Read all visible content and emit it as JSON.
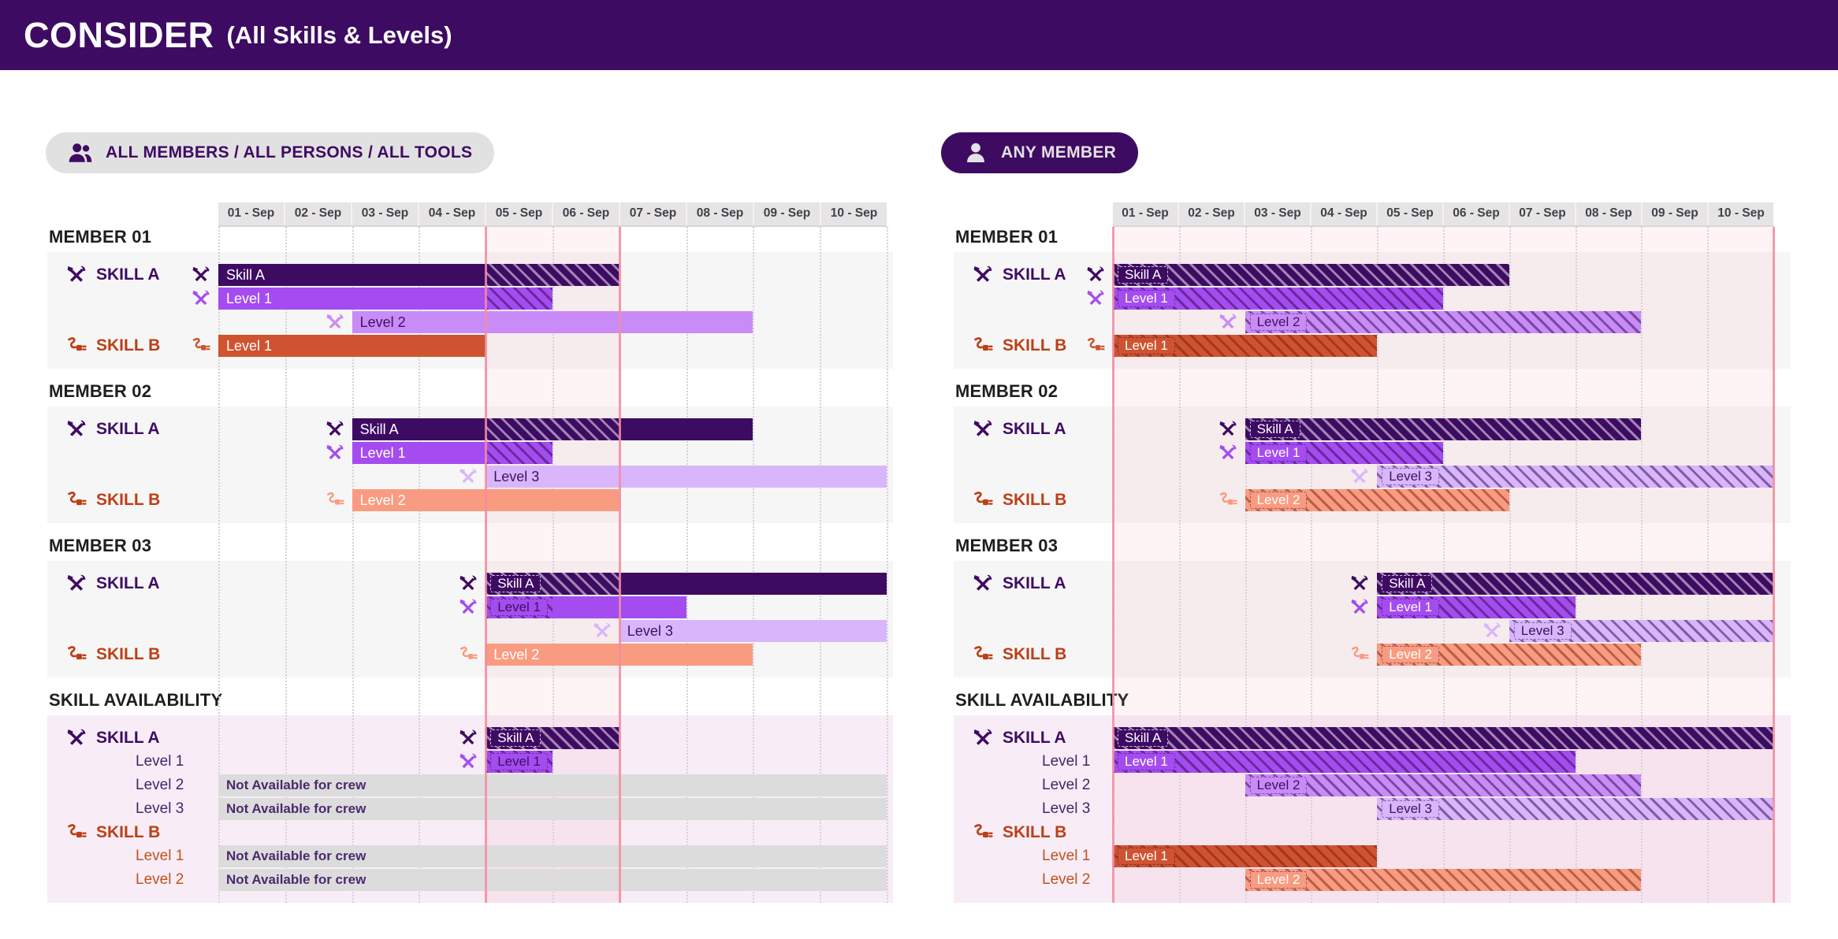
{
  "header": {
    "title": "CONSIDER",
    "subtitle": "(All Skills & Levels)"
  },
  "timeline": {
    "days": [
      "01 - Sep",
      "02 - Sep",
      "03 - Sep",
      "04 - Sep",
      "05 - Sep",
      "06 - Sep",
      "07 - Sep",
      "08 - Sep",
      "09 - Sep",
      "10 - Sep"
    ]
  },
  "colors": {
    "skillA": "#3e0b63",
    "level1": "#a44cf0",
    "level2": "#c98bf7",
    "level3": "#d9b6fb",
    "skillB1": "#cf5330",
    "skillB2": "#f99b80",
    "gray": "#dcdcdc",
    "highlight_line": "#f38ca0",
    "band_bg": "#e6e4e4",
    "member_bg": "#f7f6f6",
    "availability_bg": "#f8edf6",
    "label_purple": "#3e0b63",
    "label_orange": "#bc3f16"
  },
  "panels": [
    {
      "id": "left",
      "pill": {
        "label": "ALL MEMBERS / ALL PERSONS / ALL TOOLS",
        "icon": "people",
        "style": "light"
      },
      "highlight": {
        "from_day": 5,
        "to_day": 7
      },
      "sections": [
        {
          "title": "MEMBER 01",
          "kind": "member",
          "rows": [
            {
              "label": {
                "text": "SKILL A",
                "style": "group-a"
              },
              "bar": {
                "label": "Skill A",
                "start": 1,
                "days": 6,
                "color": "skillA",
                "text": "light",
                "chip": false,
                "icon": "tools",
                "icon_color": "skillA",
                "hatch": {
                  "from": 5,
                  "to": 7,
                  "style": "light"
                }
              }
            },
            {
              "bar": {
                "label": "Level 1",
                "start": 1,
                "days": 5,
                "color": "level1",
                "text": "light",
                "chip": false,
                "icon": "tools",
                "icon_color": "level1",
                "hatch": {
                  "from": 5,
                  "to": 6,
                  "style": "purple"
                }
              }
            },
            {
              "bar": {
                "label": "Level 2",
                "start": 3,
                "days": 6,
                "color": "level2",
                "text": "dark",
                "chip": false,
                "icon": "tools",
                "icon_color": "level2"
              }
            },
            {
              "label": {
                "text": "SKILL B",
                "style": "group-b"
              },
              "bar": {
                "label": "Level 1",
                "start": 1,
                "days": 4,
                "color": "skillB1",
                "text": "light",
                "chip": false,
                "icon": "plug",
                "icon_color": "skillB1"
              }
            }
          ]
        },
        {
          "title": "MEMBER 02",
          "kind": "member",
          "rows": [
            {
              "label": {
                "text": "SKILL A",
                "style": "group-a"
              },
              "bar": {
                "label": "Skill A",
                "start": 3,
                "days": 6,
                "color": "skillA",
                "text": "light",
                "chip": false,
                "icon": "tools",
                "icon_color": "skillA",
                "hatch": {
                  "from": 5,
                  "to": 7,
                  "style": "light"
                }
              }
            },
            {
              "bar": {
                "label": "Level 1",
                "start": 3,
                "days": 3,
                "color": "level1",
                "text": "light",
                "chip": false,
                "icon": "tools",
                "icon_color": "level1",
                "hatch": {
                  "from": 5,
                  "to": 6,
                  "style": "purple"
                }
              }
            },
            {
              "bar": {
                "label": "Level 3",
                "start": 5,
                "days": 6,
                "color": "level3",
                "text": "dark",
                "chip": false,
                "icon": "tools",
                "icon_color": "level3"
              }
            },
            {
              "label": {
                "text": "SKILL B",
                "style": "group-b"
              },
              "bar": {
                "label": "Level 2",
                "start": 3,
                "days": 4,
                "color": "skillB2",
                "text": "light",
                "chip": false,
                "icon": "plug",
                "icon_color": "skillB2"
              }
            }
          ]
        },
        {
          "title": "MEMBER 03",
          "kind": "member",
          "rows": [
            {
              "label": {
                "text": "SKILL A",
                "style": "group-a"
              },
              "bar": {
                "label": "Skill A",
                "start": 5,
                "days": 6,
                "color": "skillA",
                "text": "light",
                "chip": true,
                "icon": "tools",
                "icon_color": "skillA",
                "hatch": {
                  "from": 5,
                  "to": 7,
                  "style": "light"
                }
              }
            },
            {
              "bar": {
                "label": "Level 1",
                "start": 5,
                "days": 3,
                "color": "level1",
                "text": "dark",
                "chip": true,
                "icon": "tools",
                "icon_color": "level1",
                "hatch": {
                  "from": 5,
                  "to": 6,
                  "style": "purple"
                }
              }
            },
            {
              "bar": {
                "label": "Level 3",
                "start": 7,
                "days": 4,
                "color": "level3",
                "text": "dark",
                "chip": false,
                "icon": "tools",
                "icon_color": "level3"
              }
            },
            {
              "label": {
                "text": "SKILL B",
                "style": "group-b"
              },
              "bar": {
                "label": "Level 2",
                "start": 5,
                "days": 4,
                "color": "skillB2",
                "text": "light",
                "chip": false,
                "icon": "plug",
                "icon_color": "skillB2"
              }
            }
          ]
        },
        {
          "title": "SKILL AVAILABILITY",
          "kind": "availability",
          "rows": [
            {
              "label": {
                "text": "SKILL A",
                "style": "group-a"
              },
              "bar": {
                "label": "Skill A",
                "start": 5,
                "days": 2,
                "color": "skillA",
                "text": "light",
                "chip": true,
                "icon": "tools",
                "icon_color": "skillA",
                "hatch": {
                  "full": true,
                  "style": "light"
                }
              }
            },
            {
              "label": {
                "text": "Level 1",
                "style": "level-a"
              },
              "bar": {
                "label": "Level 1",
                "start": 5,
                "days": 1,
                "color": "level1",
                "text": "dark",
                "chip": true,
                "icon": "tools",
                "icon_color": "level1",
                "hatch": {
                  "full": true,
                  "style": "purple"
                }
              }
            },
            {
              "label": {
                "text": "Level 2",
                "style": "level-a"
              },
              "bar": {
                "label": "Not Available for crew",
                "start": 1,
                "days": 10,
                "color": "gray",
                "text": "navail",
                "chip": false
              }
            },
            {
              "label": {
                "text": "Level 3",
                "style": "level-a"
              },
              "bar": {
                "label": "Not Available for crew",
                "start": 1,
                "days": 10,
                "color": "gray",
                "text": "navail",
                "chip": false
              }
            },
            {
              "label": {
                "text": "SKILL B",
                "style": "group-b"
              }
            },
            {
              "label": {
                "text": "Level 1",
                "style": "level-b"
              },
              "bar": {
                "label": "Not Available for crew",
                "start": 1,
                "days": 10,
                "color": "gray",
                "text": "navail",
                "chip": false
              }
            },
            {
              "label": {
                "text": "Level 2",
                "style": "level-b"
              },
              "bar": {
                "label": "Not Available for crew",
                "start": 1,
                "days": 10,
                "color": "gray",
                "text": "navail",
                "chip": false
              }
            }
          ]
        }
      ]
    },
    {
      "id": "right",
      "pill": {
        "label": "ANY MEMBER",
        "icon": "person",
        "style": "dark"
      },
      "highlight": {
        "from_day": 1,
        "to_day": 11
      },
      "sections": [
        {
          "title": "MEMBER 01",
          "kind": "member",
          "rows": [
            {
              "label": {
                "text": "SKILL A",
                "style": "group-a"
              },
              "bar": {
                "label": "Skill A",
                "start": 1,
                "days": 6,
                "color": "skillA",
                "text": "light",
                "chip": true,
                "icon": "tools",
                "icon_color": "skillA",
                "hatch": {
                  "full": true,
                  "style": "light"
                }
              }
            },
            {
              "bar": {
                "label": "Level 1",
                "start": 1,
                "days": 5,
                "color": "level1",
                "text": "light",
                "chip": true,
                "icon": "tools",
                "icon_color": "level1",
                "hatch": {
                  "full": true,
                  "style": "purple"
                }
              }
            },
            {
              "bar": {
                "label": "Level 2",
                "start": 3,
                "days": 6,
                "color": "level2",
                "text": "dark",
                "chip": true,
                "icon": "tools",
                "icon_color": "level2",
                "hatch": {
                  "full": true,
                  "style": "purple"
                }
              }
            },
            {
              "label": {
                "text": "SKILL B",
                "style": "group-b"
              },
              "bar": {
                "label": "Level 1",
                "start": 1,
                "days": 4,
                "color": "skillB1",
                "text": "light",
                "chip": true,
                "icon": "plug",
                "icon_color": "skillB1",
                "hatch": {
                  "full": true,
                  "style": "orange"
                }
              }
            }
          ]
        },
        {
          "title": "MEMBER 02",
          "kind": "member",
          "rows": [
            {
              "label": {
                "text": "SKILL A",
                "style": "group-a"
              },
              "bar": {
                "label": "Skill A",
                "start": 3,
                "days": 6,
                "color": "skillA",
                "text": "light",
                "chip": true,
                "icon": "tools",
                "icon_color": "skillA",
                "hatch": {
                  "full": true,
                  "style": "light"
                }
              }
            },
            {
              "bar": {
                "label": "Level 1",
                "start": 3,
                "days": 3,
                "color": "level1",
                "text": "light",
                "chip": true,
                "icon": "tools",
                "icon_color": "level1",
                "hatch": {
                  "full": true,
                  "style": "purple"
                }
              }
            },
            {
              "bar": {
                "label": "Level 3",
                "start": 5,
                "days": 6,
                "color": "level3",
                "text": "dark",
                "chip": true,
                "icon": "tools",
                "icon_color": "level3",
                "hatch": {
                  "full": true,
                  "style": "purple"
                }
              }
            },
            {
              "label": {
                "text": "SKILL B",
                "style": "group-b"
              },
              "bar": {
                "label": "Level 2",
                "start": 3,
                "days": 4,
                "color": "skillB2",
                "text": "light",
                "chip": true,
                "icon": "plug",
                "icon_color": "skillB2",
                "hatch": {
                  "full": true,
                  "style": "orange"
                }
              }
            }
          ]
        },
        {
          "title": "MEMBER 03",
          "kind": "member",
          "rows": [
            {
              "label": {
                "text": "SKILL A",
                "style": "group-a"
              },
              "bar": {
                "label": "Skill A",
                "start": 5,
                "days": 6,
                "color": "skillA",
                "text": "light",
                "chip": true,
                "icon": "tools",
                "icon_color": "skillA",
                "hatch": {
                  "full": true,
                  "style": "light"
                }
              }
            },
            {
              "bar": {
                "label": "Level 1",
                "start": 5,
                "days": 3,
                "color": "level1",
                "text": "light",
                "chip": true,
                "icon": "tools",
                "icon_color": "level1",
                "hatch": {
                  "full": true,
                  "style": "purple"
                }
              }
            },
            {
              "bar": {
                "label": "Level 3",
                "start": 7,
                "days": 4,
                "color": "level3",
                "text": "dark",
                "chip": true,
                "icon": "tools",
                "icon_color": "level3",
                "hatch": {
                  "full": true,
                  "style": "purple"
                }
              }
            },
            {
              "label": {
                "text": "SKILL B",
                "style": "group-b"
              },
              "bar": {
                "label": "Level 2",
                "start": 5,
                "days": 4,
                "color": "skillB2",
                "text": "light",
                "chip": true,
                "icon": "plug",
                "icon_color": "skillB2",
                "hatch": {
                  "full": true,
                  "style": "orange"
                }
              }
            }
          ]
        },
        {
          "title": "SKILL AVAILABILITY",
          "kind": "availability",
          "rows": [
            {
              "label": {
                "text": "SKILL A",
                "style": "group-a"
              },
              "bar": {
                "label": "Skill A",
                "start": 1,
                "days": 10,
                "color": "skillA",
                "text": "light",
                "chip": true,
                "hatch": {
                  "full": true,
                  "style": "light"
                }
              }
            },
            {
              "label": {
                "text": "Level 1",
                "style": "level-a"
              },
              "bar": {
                "label": "Level 1",
                "start": 1,
                "days": 7,
                "color": "level1",
                "text": "light",
                "chip": true,
                "hatch": {
                  "full": true,
                  "style": "purple"
                }
              }
            },
            {
              "label": {
                "text": "Level 2",
                "style": "level-a"
              },
              "bar": {
                "label": "Level 2",
                "start": 3,
                "days": 6,
                "color": "level2",
                "text": "dark",
                "chip": true,
                "hatch": {
                  "full": true,
                  "style": "purple"
                }
              }
            },
            {
              "label": {
                "text": "Level 3",
                "style": "level-a"
              },
              "bar": {
                "label": "Level 3",
                "start": 5,
                "days": 6,
                "color": "level3",
                "text": "dark",
                "chip": true,
                "hatch": {
                  "full": true,
                  "style": "purple"
                }
              }
            },
            {
              "label": {
                "text": "SKILL B",
                "style": "group-b"
              }
            },
            {
              "label": {
                "text": "Level 1",
                "style": "level-b"
              },
              "bar": {
                "label": "Level 1",
                "start": 1,
                "days": 4,
                "color": "skillB1",
                "text": "light",
                "chip": true,
                "hatch": {
                  "full": true,
                  "style": "orange"
                }
              }
            },
            {
              "label": {
                "text": "Level 2",
                "style": "level-b"
              },
              "bar": {
                "label": "Level 2",
                "start": 3,
                "days": 6,
                "color": "skillB2",
                "text": "light",
                "chip": true,
                "hatch": {
                  "full": true,
                  "style": "orange"
                }
              }
            }
          ]
        }
      ]
    }
  ]
}
